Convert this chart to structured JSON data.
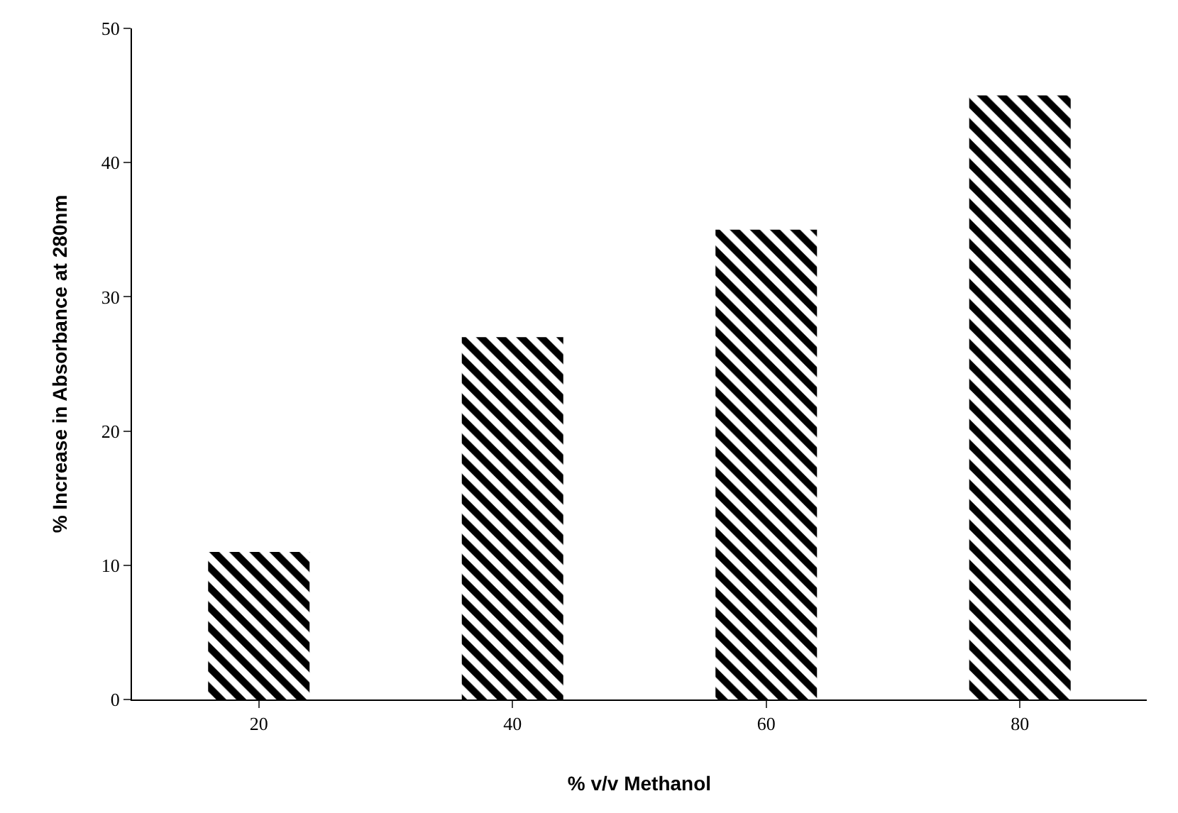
{
  "chart_data": {
    "type": "bar",
    "xlabel": "% v/v Methanol",
    "ylabel": "% Increase in Absorbance at 280nm",
    "categories": [
      "20",
      "40",
      "60",
      "80"
    ],
    "values": [
      11,
      27,
      35,
      45
    ],
    "color": "#000000",
    "ylim": [
      0,
      50
    ],
    "yticks": [
      0,
      10,
      20,
      30,
      40,
      50
    ]
  }
}
